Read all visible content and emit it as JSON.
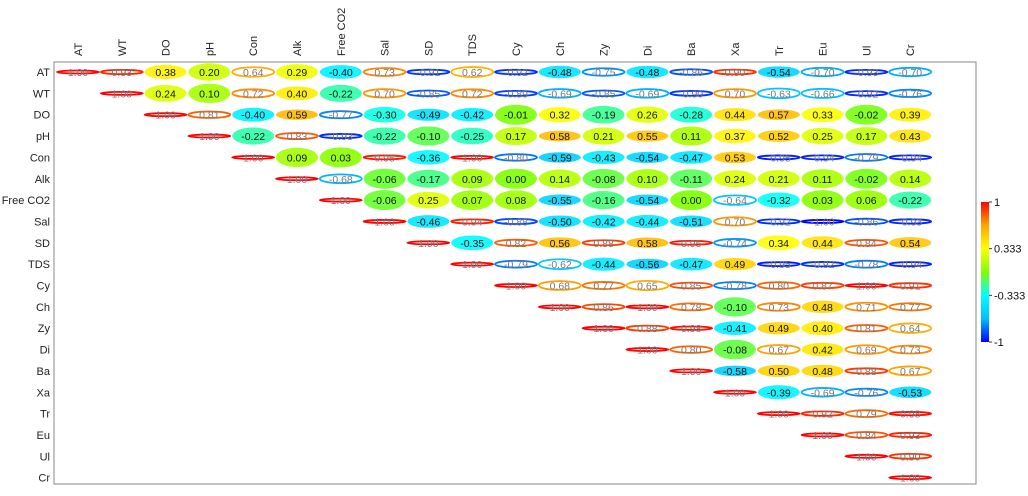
{
  "chart_data": {
    "type": "heatmap",
    "variables": [
      "AT",
      "WT",
      "DO",
      "pH",
      "Con",
      "Alk",
      "Free CO2",
      "Sal",
      "SD",
      "TDS",
      "Cy",
      "Ch",
      "Zy",
      "Di",
      "Ba",
      "Xa",
      "Tr",
      "Eu",
      "Ul",
      "Cr"
    ],
    "matrix": [
      [
        1.0,
        0.93,
        0.38,
        0.2,
        0.64,
        0.29,
        -0.4,
        0.73,
        -0.91,
        0.62,
        -0.92,
        -0.48,
        -0.75,
        -0.48,
        -0.86,
        0.9,
        -0.54,
        -0.7,
        -0.93,
        -0.7
      ],
      [
        null,
        1.0,
        0.24,
        0.1,
        0.72,
        0.4,
        -0.22,
        0.7,
        -0.85,
        0.72,
        -0.89,
        -0.69,
        -0.85,
        -0.69,
        -0.9,
        0.7,
        -0.63,
        -0.66,
        -0.92,
        -0.76
      ],
      [
        null,
        null,
        1.0,
        0.81,
        -0.4,
        0.59,
        -0.77,
        -0.3,
        -0.49,
        -0.42,
        -0.01,
        0.32,
        -0.19,
        0.26,
        -0.28,
        0.44,
        0.57,
        0.33,
        -0.02,
        0.39
      ],
      [
        null,
        null,
        null,
        1.0,
        -0.22,
        0.83,
        -0.93,
        -0.22,
        -0.1,
        -0.25,
        0.17,
        0.58,
        0.21,
        0.55,
        0.11,
        0.37,
        0.52,
        0.25,
        0.17,
        0.43
      ],
      [
        null,
        null,
        null,
        null,
        1.0,
        0.09,
        0.03,
        0.95,
        -0.36,
        1.0,
        -0.8,
        -0.59,
        -0.43,
        -0.54,
        -0.47,
        0.53,
        -0.95,
        -0.94,
        -0.79,
        -0.94
      ],
      [
        null,
        null,
        null,
        null,
        null,
        1.0,
        -0.68,
        -0.06,
        -0.17,
        0.09,
        0.0,
        0.14,
        -0.08,
        0.1,
        -0.11,
        0.24,
        0.21,
        0.11,
        -0.02,
        0.14
      ],
      [
        null,
        null,
        null,
        null,
        null,
        null,
        1.0,
        -0.06,
        0.25,
        0.07,
        0.08,
        -0.55,
        -0.16,
        -0.54,
        0.0,
        -0.64,
        -0.32,
        0.03,
        0.06,
        -0.22
      ],
      [
        null,
        null,
        null,
        null,
        null,
        null,
        null,
        1.0,
        -0.46,
        0.94,
        -0.88,
        -0.5,
        -0.42,
        -0.44,
        -0.51,
        0.7,
        -0.92,
        -1.0,
        -0.86,
        -0.93
      ],
      [
        null,
        null,
        null,
        null,
        null,
        null,
        null,
        null,
        1.0,
        -0.35,
        0.82,
        0.56,
        0.88,
        0.58,
        0.95,
        -0.74,
        0.34,
        0.44,
        0.84,
        0.54
      ],
      [
        null,
        null,
        null,
        null,
        null,
        null,
        null,
        null,
        null,
        1.0,
        -0.79,
        -0.62,
        -0.44,
        -0.56,
        -0.47,
        0.49,
        -0.95,
        -0.92,
        -0.78,
        -0.94
      ],
      [
        null,
        null,
        null,
        null,
        null,
        null,
        null,
        null,
        null,
        null,
        1.0,
        0.68,
        0.77,
        0.65,
        0.85,
        -0.78,
        0.8,
        0.87,
        1.0,
        0.91
      ],
      [
        null,
        null,
        null,
        null,
        null,
        null,
        null,
        null,
        null,
        null,
        null,
        1.0,
        0.86,
        1.0,
        0.78,
        -0.1,
        0.73,
        0.48,
        0.71,
        0.77
      ],
      [
        null,
        null,
        null,
        null,
        null,
        null,
        null,
        null,
        null,
        null,
        null,
        null,
        1.0,
        0.88,
        0.98,
        -0.41,
        0.49,
        0.4,
        0.81,
        0.64
      ],
      [
        null,
        null,
        null,
        null,
        null,
        null,
        null,
        null,
        null,
        null,
        null,
        null,
        null,
        1.0,
        0.8,
        -0.08,
        0.67,
        0.42,
        0.69,
        0.73
      ],
      [
        null,
        null,
        null,
        null,
        null,
        null,
        null,
        null,
        null,
        null,
        null,
        null,
        null,
        null,
        1.0,
        -0.58,
        0.5,
        0.48,
        0.88,
        0.67
      ],
      [
        null,
        null,
        null,
        null,
        null,
        null,
        null,
        null,
        null,
        null,
        null,
        null,
        null,
        null,
        null,
        1.0,
        -0.39,
        -0.69,
        -0.76,
        -0.53
      ],
      [
        null,
        null,
        null,
        null,
        null,
        null,
        null,
        null,
        null,
        null,
        null,
        null,
        null,
        null,
        null,
        null,
        1.0,
        0.92,
        0.79,
        0.98
      ],
      [
        null,
        null,
        null,
        null,
        null,
        null,
        null,
        null,
        null,
        null,
        null,
        null,
        null,
        null,
        null,
        null,
        null,
        1.0,
        0.84,
        0.93
      ],
      [
        null,
        null,
        null,
        null,
        null,
        null,
        null,
        null,
        null,
        null,
        null,
        null,
        null,
        null,
        null,
        null,
        null,
        null,
        1.0,
        0.9
      ],
      [
        null,
        null,
        null,
        null,
        null,
        null,
        null,
        null,
        null,
        null,
        null,
        null,
        null,
        null,
        null,
        null,
        null,
        null,
        null,
        1.0
      ]
    ],
    "colorbar": {
      "range": [
        -1,
        1
      ],
      "ticks": [
        "1",
        "0.333",
        "-0.333",
        "-1"
      ]
    },
    "color_stops": [
      "#0000ff",
      "#00bfff",
      "#00ffff",
      "#7fff00",
      "#ffff00",
      "#ffa500",
      "#ff0000"
    ],
    "grid": false
  }
}
